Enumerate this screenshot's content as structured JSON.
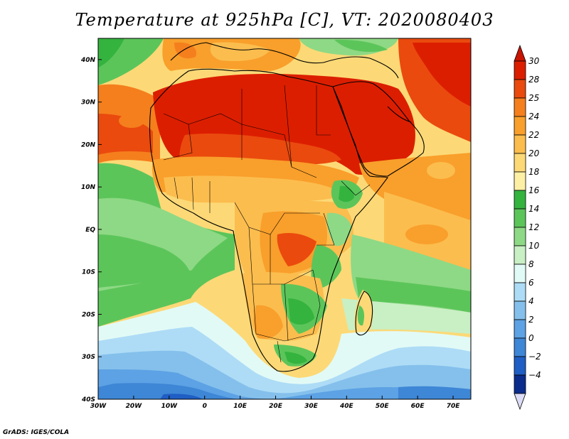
{
  "title": "Temperature at 925hPa [C], VT: 2020080403",
  "credit": "GrADS: IGES/COLA",
  "map": {
    "lon_range": [
      -30,
      75
    ],
    "lat_range": [
      -40,
      45
    ],
    "lon_ticks": [
      {
        "value": -30,
        "label": "30W"
      },
      {
        "value": -20,
        "label": "20W"
      },
      {
        "value": -10,
        "label": "10W"
      },
      {
        "value": 0,
        "label": "0"
      },
      {
        "value": 10,
        "label": "10E"
      },
      {
        "value": 20,
        "label": "20E"
      },
      {
        "value": 30,
        "label": "30E"
      },
      {
        "value": 40,
        "label": "40E"
      },
      {
        "value": 50,
        "label": "50E"
      },
      {
        "value": 60,
        "label": "60E"
      },
      {
        "value": 70,
        "label": "70E"
      }
    ],
    "lat_ticks": [
      {
        "value": 40,
        "label": "40N"
      },
      {
        "value": 30,
        "label": "30N"
      },
      {
        "value": 20,
        "label": "20N"
      },
      {
        "value": 10,
        "label": "10N"
      },
      {
        "value": 0,
        "label": "EQ"
      },
      {
        "value": -10,
        "label": "10S"
      },
      {
        "value": -20,
        "label": "20S"
      },
      {
        "value": -30,
        "label": "30S"
      },
      {
        "value": -40,
        "label": "40S"
      }
    ]
  },
  "colorbar": {
    "levels": [
      {
        "label": "30",
        "color": "#dc1e00"
      },
      {
        "label": "28",
        "color": "#ea4a0e"
      },
      {
        "label": "25",
        "color": "#f57f1d"
      },
      {
        "label": "24",
        "color": "#f99f2b"
      },
      {
        "label": "22",
        "color": "#fbbd4e"
      },
      {
        "label": "20",
        "color": "#fcd976"
      },
      {
        "label": "18",
        "color": "#fdf0a5"
      },
      {
        "label": "16",
        "color": "#34b33f"
      },
      {
        "label": "14",
        "color": "#5cc55a"
      },
      {
        "label": "12",
        "color": "#8ed985"
      },
      {
        "label": "10",
        "color": "#c9efc4"
      },
      {
        "label": "8",
        "color": "#e2faf6"
      },
      {
        "label": "6",
        "color": "#aedcf6"
      },
      {
        "label": "4",
        "color": "#85c0ec"
      },
      {
        "label": "2",
        "color": "#5ca2e4"
      },
      {
        "label": "0",
        "color": "#3e86d6"
      },
      {
        "label": "−2",
        "color": "#1f5ec4"
      },
      {
        "label": "−4",
        "color": "#0b2c8c"
      }
    ],
    "top_color": "#c81400",
    "bottom_color": "#dcdcf6"
  }
}
